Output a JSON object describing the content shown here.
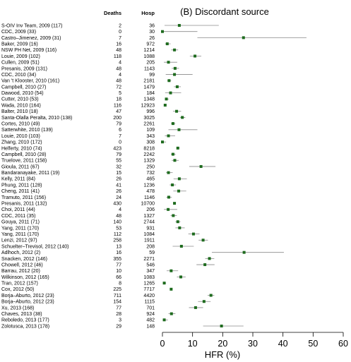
{
  "chart_data": {
    "type": "forest",
    "title": "(B) Discordant source",
    "xlabel": "HFR (%)",
    "xlim": [
      0,
      60
    ],
    "xticks": [
      0,
      10,
      20,
      30,
      40,
      50,
      60
    ],
    "columns": {
      "deaths": "Deaths",
      "hosp": "Hosp"
    },
    "marker_color": "#1e6b1e",
    "studies": [
      {
        "label": "S-OIV Inv Team, 2009 (117)",
        "deaths": "2",
        "hosp": "36",
        "est": 5.6,
        "lo": 0.7,
        "hi": 18.7
      },
      {
        "label": "CDC, 2009 (33)",
        "deaths": "0",
        "hosp": "30",
        "est": 0.0,
        "lo": 0.0,
        "hi": 11.6
      },
      {
        "label": "Castro–Jimenez, 2009 (31)",
        "deaths": "7",
        "hosp": "26",
        "est": 26.9,
        "lo": 11.6,
        "hi": 47.8
      },
      {
        "label": "Baker, 2009 (16)",
        "deaths": "16",
        "hosp": "972",
        "est": 1.6,
        "lo": 0.9,
        "hi": 2.7
      },
      {
        "label": "NSW PH Net, 2009 (116)",
        "deaths": "48",
        "hosp": "1214",
        "est": 4.0,
        "lo": 2.9,
        "hi": 5.2
      },
      {
        "label": "Louie, 2009 (102)",
        "deaths": "118",
        "hosp": "1088",
        "est": 10.8,
        "lo": 9.1,
        "hi": 12.9
      },
      {
        "label": "Cullen, 2009 (51)",
        "deaths": "4",
        "hosp": "205",
        "est": 2.0,
        "lo": 0.5,
        "hi": 4.9
      },
      {
        "label": "Presanis, 2009 (131)",
        "deaths": "48",
        "hosp": "1143",
        "est": 4.2,
        "lo": 3.1,
        "hi": 5.5
      },
      {
        "label": "CDC, 2010 (34)",
        "deaths": "4",
        "hosp": "99",
        "est": 4.0,
        "lo": 1.1,
        "hi": 10.0
      },
      {
        "label": "Van 't Klooster, 2010 (161)",
        "deaths": "48",
        "hosp": "2181",
        "est": 2.2,
        "lo": 1.6,
        "hi": 2.9
      },
      {
        "label": "Campbell, 2010 (27)",
        "deaths": "72",
        "hosp": "1479",
        "est": 4.9,
        "lo": 3.8,
        "hi": 6.1
      },
      {
        "label": "Dawood, 2010 (54)",
        "deaths": "5",
        "hosp": "184",
        "est": 2.7,
        "lo": 0.9,
        "hi": 6.2
      },
      {
        "label": "Cutter, 2010 (53)",
        "deaths": "18",
        "hosp": "1348",
        "est": 1.3,
        "lo": 0.8,
        "hi": 2.1
      },
      {
        "label": "Wada, 2010 (164)",
        "deaths": "116",
        "hosp": "12923",
        "est": 0.9,
        "lo": 0.7,
        "hi": 1.1
      },
      {
        "label": "Balter, 2010 (18)",
        "deaths": "47",
        "hosp": "996",
        "est": 4.7,
        "lo": 3.5,
        "hi": 6.2
      },
      {
        "label": "Santa-Olalla Peralta, 2010 (138)",
        "deaths": "200",
        "hosp": "3025",
        "est": 6.6,
        "lo": 5.8,
        "hi": 7.6
      },
      {
        "label": "Cortes, 2010 (49)",
        "deaths": "79",
        "hosp": "2261",
        "est": 3.5,
        "lo": 2.8,
        "hi": 4.3
      },
      {
        "label": "Satterwhite, 2010 (139)",
        "deaths": "6",
        "hosp": "109",
        "est": 5.5,
        "lo": 2.0,
        "hi": 11.6
      },
      {
        "label": "Louie, 2010 (103)",
        "deaths": "7",
        "hosp": "343",
        "est": 2.0,
        "lo": 0.8,
        "hi": 4.2
      },
      {
        "label": "Zhang, 2010 (172)",
        "deaths": "0",
        "hosp": "308",
        "est": 0.0,
        "lo": 0.0,
        "hi": 1.2
      },
      {
        "label": "Helferty, 2010 (74)",
        "deaths": "423",
        "hosp": "8218",
        "est": 5.1,
        "lo": 4.7,
        "hi": 5.7
      },
      {
        "label": "Campbell, 2010 (28)",
        "deaths": "79",
        "hosp": "2242",
        "est": 3.5,
        "lo": 2.8,
        "hi": 4.4
      },
      {
        "label": "Truelove, 2011 (158)",
        "deaths": "55",
        "hosp": "1329",
        "est": 4.1,
        "lo": 3.1,
        "hi": 5.4
      },
      {
        "label": "Gioula, 2011 (67)",
        "deaths": "32",
        "hosp": "250",
        "est": 12.8,
        "lo": 8.9,
        "hi": 17.6
      },
      {
        "label": "Bandaranayake, 2011 (19)",
        "deaths": "15",
        "hosp": "732",
        "est": 2.0,
        "lo": 1.2,
        "hi": 3.4
      },
      {
        "label": "Kelly, 2011 (84)",
        "deaths": "26",
        "hosp": "465",
        "est": 5.6,
        "lo": 3.7,
        "hi": 8.1
      },
      {
        "label": "Phung, 2011 (128)",
        "deaths": "41",
        "hosp": "1236",
        "est": 3.3,
        "lo": 2.4,
        "hi": 4.5
      },
      {
        "label": "Cheng, 2011 (41)",
        "deaths": "26",
        "hosp": "478",
        "est": 5.4,
        "lo": 3.6,
        "hi": 7.9
      },
      {
        "label": "Tramuto, 2011 (156)",
        "deaths": "24",
        "hosp": "1146",
        "est": 2.1,
        "lo": 1.3,
        "hi": 3.1
      },
      {
        "label": "Presanis, 2011 (132)",
        "deaths": "430",
        "hosp": "10700",
        "est": 4.0,
        "lo": 3.7,
        "hi": 4.4
      },
      {
        "label": "Choi, 2011 (44)",
        "deaths": "4",
        "hosp": "206",
        "est": 1.9,
        "lo": 0.5,
        "hi": 4.9
      },
      {
        "label": "CDC, 2011 (35)",
        "deaths": "48",
        "hosp": "1327",
        "est": 3.6,
        "lo": 2.7,
        "hi": 4.8
      },
      {
        "label": "Gouya, 2011 (71)",
        "deaths": "140",
        "hosp": "2744",
        "est": 5.1,
        "lo": 4.3,
        "hi": 6.0
      },
      {
        "label": "Yang, 2011 (170)",
        "deaths": "53",
        "hosp": "931",
        "est": 5.7,
        "lo": 4.3,
        "hi": 7.4
      },
      {
        "label": "Yang, 2011 (170)",
        "deaths": "112",
        "hosp": "1084",
        "est": 10.3,
        "lo": 8.6,
        "hi": 12.3
      },
      {
        "label": "Lenzi, 2012 (97)",
        "deaths": "258",
        "hosp": "1911",
        "est": 13.5,
        "lo": 12.0,
        "hi": 15.1
      },
      {
        "label": "Schuelter–Trevisol, 2012 (140)",
        "deaths": "13",
        "hosp": "208",
        "est": 6.3,
        "lo": 3.4,
        "hi": 10.4
      },
      {
        "label": "Adlhoch, 2012 (2)",
        "deaths": "16",
        "hosp": "59",
        "est": 27.1,
        "lo": 16.4,
        "hi": 40.3
      },
      {
        "label": "Snacken, 2012 (146)",
        "deaths": "355",
        "hosp": "2271",
        "est": 15.6,
        "lo": 14.2,
        "hi": 17.2
      },
      {
        "label": "Chowell, 2012 (46)",
        "deaths": "77",
        "hosp": "546",
        "est": 14.1,
        "lo": 11.3,
        "hi": 17.3
      },
      {
        "label": "Barrau, 2012 (20)",
        "deaths": "10",
        "hosp": "347",
        "est": 2.9,
        "lo": 1.4,
        "hi": 5.2
      },
      {
        "label": "Wilkinson, 2012 (165)",
        "deaths": "66",
        "hosp": "1083",
        "est": 6.1,
        "lo": 4.8,
        "hi": 7.7
      },
      {
        "label": "Tran, 2012 (157)",
        "deaths": "8",
        "hosp": "1265",
        "est": 0.6,
        "lo": 0.3,
        "hi": 1.2
      },
      {
        "label": "Cox, 2012 (50)",
        "deaths": "225",
        "hosp": "7717",
        "est": 2.9,
        "lo": 2.6,
        "hi": 3.3
      },
      {
        "label": "Borja–Aburto, 2012 (23)",
        "deaths": "711",
        "hosp": "4420",
        "est": 16.1,
        "lo": 15.0,
        "hi": 17.2
      },
      {
        "label": "Borja–Aburto, 2012 (23)",
        "deaths": "154",
        "hosp": "1115",
        "est": 13.8,
        "lo": 11.8,
        "hi": 16.0
      },
      {
        "label": "Xu, 2013 (168)",
        "deaths": "77",
        "hosp": "701",
        "est": 11.0,
        "lo": 8.8,
        "hi": 13.5
      },
      {
        "label": "Chaves, 2013 (38)",
        "deaths": "28",
        "hosp": "924",
        "est": 3.0,
        "lo": 2.0,
        "hi": 4.3
      },
      {
        "label": "Reboledo, 2013 (177)",
        "deaths": "3",
        "hosp": "482",
        "est": 0.6,
        "lo": 0.1,
        "hi": 1.8
      },
      {
        "label": "Zolotusca, 2013 (178)",
        "deaths": "29",
        "hosp": "148",
        "est": 19.6,
        "lo": 13.5,
        "hi": 26.9
      }
    ]
  }
}
